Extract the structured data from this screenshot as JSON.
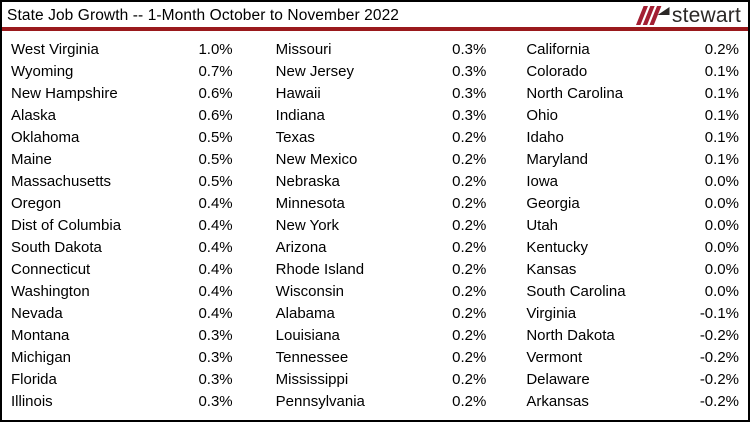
{
  "header": {
    "title": "State Job Growth -- 1-Month October to November 2022",
    "logo_text": "stewart"
  },
  "colors": {
    "divider_red": "#9a191c",
    "logo_slash_red": "#a31e32",
    "logo_dark": "#2b2826",
    "border": "#000000",
    "text": "#000000",
    "background": "#ffffff"
  },
  "chart_data": {
    "type": "table",
    "title": "State Job Growth -- 1-Month October to November 2022",
    "unit": "%",
    "layout": "three columns, each column: state name left-aligned, value right-aligned, sorted descending",
    "columns": [
      {
        "rows": [
          {
            "state": "West Virginia",
            "value": "1.0%"
          },
          {
            "state": "Wyoming",
            "value": "0.7%"
          },
          {
            "state": "New Hampshire",
            "value": "0.6%"
          },
          {
            "state": "Alaska",
            "value": "0.6%"
          },
          {
            "state": "Oklahoma",
            "value": "0.5%"
          },
          {
            "state": "Maine",
            "value": "0.5%"
          },
          {
            "state": "Massachusetts",
            "value": "0.5%"
          },
          {
            "state": "Oregon",
            "value": "0.4%"
          },
          {
            "state": "Dist of Columbia",
            "value": "0.4%"
          },
          {
            "state": "South Dakota",
            "value": "0.4%"
          },
          {
            "state": "Connecticut",
            "value": "0.4%"
          },
          {
            "state": "Washington",
            "value": "0.4%"
          },
          {
            "state": "Nevada",
            "value": "0.4%"
          },
          {
            "state": "Montana",
            "value": "0.3%"
          },
          {
            "state": "Michigan",
            "value": "0.3%"
          },
          {
            "state": "Florida",
            "value": "0.3%"
          },
          {
            "state": "Illinois",
            "value": "0.3%"
          }
        ]
      },
      {
        "rows": [
          {
            "state": "Missouri",
            "value": "0.3%"
          },
          {
            "state": "New Jersey",
            "value": "0.3%"
          },
          {
            "state": "Hawaii",
            "value": "0.3%"
          },
          {
            "state": "Indiana",
            "value": "0.3%"
          },
          {
            "state": "Texas",
            "value": "0.2%"
          },
          {
            "state": "New Mexico",
            "value": "0.2%"
          },
          {
            "state": "Nebraska",
            "value": "0.2%"
          },
          {
            "state": "Minnesota",
            "value": "0.2%"
          },
          {
            "state": "New York",
            "value": "0.2%"
          },
          {
            "state": "Arizona",
            "value": "0.2%"
          },
          {
            "state": "Rhode Island",
            "value": "0.2%"
          },
          {
            "state": "Wisconsin",
            "value": "0.2%"
          },
          {
            "state": "Alabama",
            "value": "0.2%"
          },
          {
            "state": "Louisiana",
            "value": "0.2%"
          },
          {
            "state": "Tennessee",
            "value": "0.2%"
          },
          {
            "state": "Mississippi",
            "value": "0.2%"
          },
          {
            "state": "Pennsylvania",
            "value": "0.2%"
          }
        ]
      },
      {
        "rows": [
          {
            "state": "California",
            "value": "0.2%"
          },
          {
            "state": "Colorado",
            "value": "0.1%"
          },
          {
            "state": "North Carolina",
            "value": "0.1%"
          },
          {
            "state": "Ohio",
            "value": "0.1%"
          },
          {
            "state": "Idaho",
            "value": "0.1%"
          },
          {
            "state": "Maryland",
            "value": "0.1%"
          },
          {
            "state": "Iowa",
            "value": "0.0%"
          },
          {
            "state": "Georgia",
            "value": "0.0%"
          },
          {
            "state": "Utah",
            "value": "0.0%"
          },
          {
            "state": "Kentucky",
            "value": "0.0%"
          },
          {
            "state": "Kansas",
            "value": "0.0%"
          },
          {
            "state": "South Carolina",
            "value": "0.0%"
          },
          {
            "state": "Virginia",
            "value": "-0.1%"
          },
          {
            "state": "North Dakota",
            "value": "-0.2%"
          },
          {
            "state": "Vermont",
            "value": "-0.2%"
          },
          {
            "state": "Delaware",
            "value": "-0.2%"
          },
          {
            "state": "Arkansas",
            "value": "-0.2%"
          }
        ]
      }
    ]
  }
}
